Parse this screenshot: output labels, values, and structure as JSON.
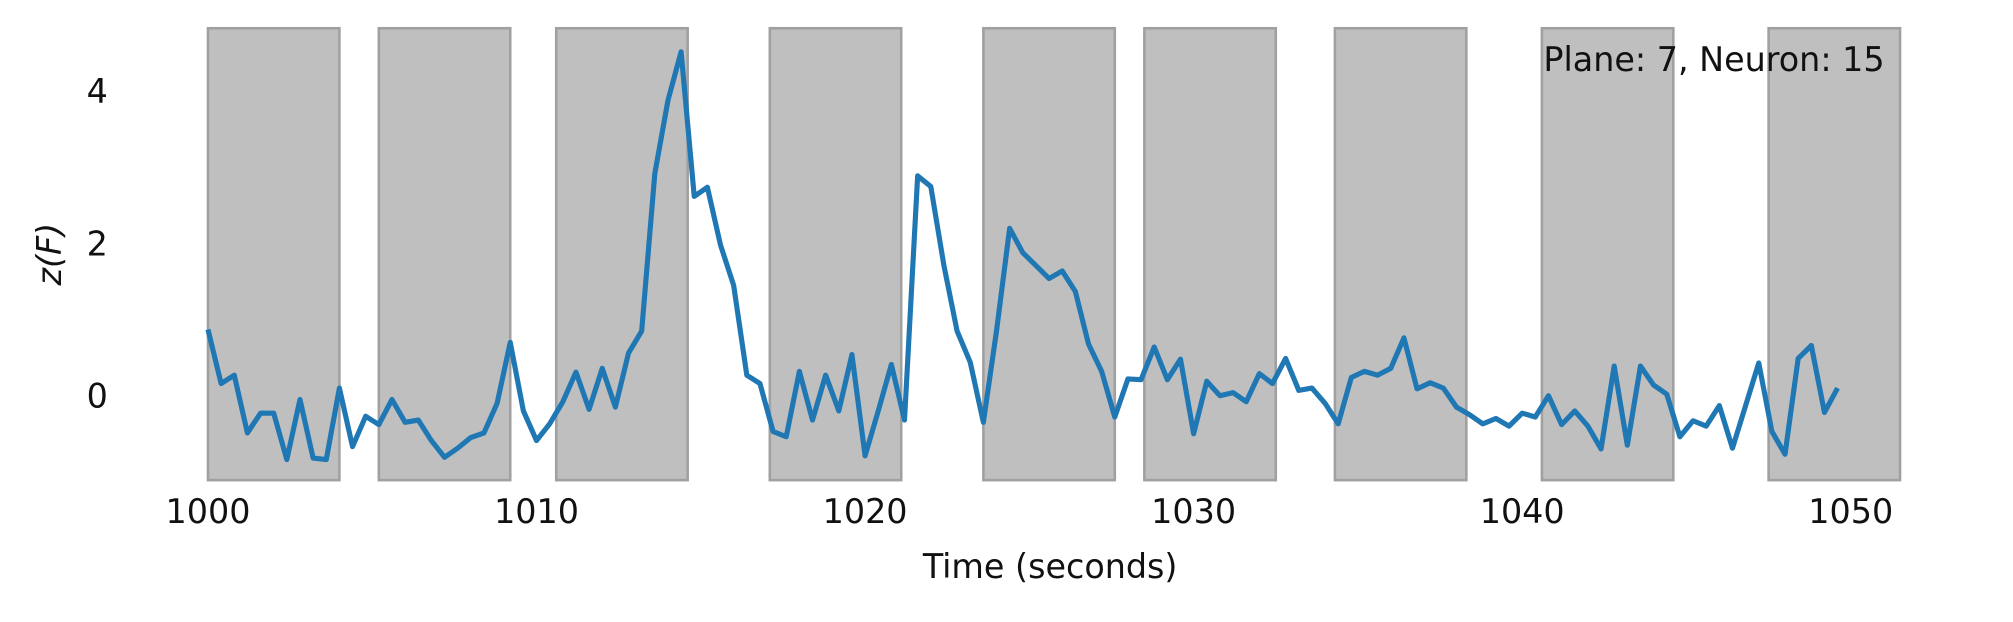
{
  "chart_data": {
    "type": "line",
    "ylabel": "z(F)",
    "xlabel": "Time (seconds)",
    "annotation": "Plane: 7, Neuron: 15",
    "x": [
      1000,
      1000.4,
      1000.8,
      1001.2,
      1001.6,
      1002,
      1002.4,
      1002.8,
      1003.2,
      1003.6,
      1004,
      1004.4,
      1004.8,
      1005.2,
      1005.6,
      1006,
      1006.4,
      1006.8,
      1007.2,
      1007.6,
      1008,
      1008.4,
      1008.8,
      1009.2,
      1009.6,
      1010,
      1010.4,
      1010.8,
      1011.2,
      1011.6,
      1012,
      1012.4,
      1012.8,
      1013.2,
      1013.6,
      1014,
      1014.4,
      1014.8,
      1015.2,
      1015.6,
      1016,
      1016.4,
      1016.8,
      1017.2,
      1017.6,
      1018,
      1018.4,
      1018.8,
      1019.2,
      1019.6,
      1020,
      1020.4,
      1020.8,
      1021.2,
      1021.6,
      1022,
      1022.4,
      1022.8,
      1023.2,
      1023.6,
      1024,
      1024.4,
      1024.8,
      1025.2,
      1025.6,
      1026,
      1026.4,
      1026.8,
      1027.2,
      1027.6,
      1028,
      1028.4,
      1028.8,
      1029.2,
      1029.6,
      1030,
      1030.4,
      1030.8,
      1031.2,
      1031.6,
      1032,
      1032.4,
      1032.8,
      1033.2,
      1033.6,
      1034,
      1034.4,
      1034.8,
      1035.2,
      1035.6,
      1036,
      1036.4,
      1036.8,
      1037.2,
      1037.6,
      1038,
      1038.4,
      1038.8,
      1039.2,
      1039.6,
      1040,
      1040.4,
      1040.8,
      1041.2,
      1041.6,
      1042,
      1042.4,
      1042.8,
      1043.2,
      1043.6,
      1044,
      1044.4,
      1044.8,
      1045.2,
      1045.6,
      1046,
      1046.4,
      1046.8,
      1047.2,
      1047.6,
      1048,
      1048.4,
      1048.8,
      1049.2,
      1049.6
    ],
    "values": [
      0.9,
      0.19,
      0.3,
      -0.46,
      -0.2,
      -0.2,
      -0.81,
      -0.02,
      -0.79,
      -0.81,
      0.13,
      -0.64,
      -0.24,
      -0.35,
      -0.02,
      -0.32,
      -0.29,
      -0.56,
      -0.78,
      -0.66,
      -0.52,
      -0.46,
      -0.07,
      0.73,
      -0.17,
      -0.56,
      -0.34,
      -0.05,
      0.34,
      -0.15,
      0.39,
      -0.12,
      0.59,
      0.88,
      2.95,
      3.91,
      4.55,
      2.65,
      2.77,
      2.01,
      1.48,
      0.3,
      0.19,
      -0.44,
      -0.51,
      0.35,
      -0.29,
      0.3,
      -0.17,
      0.57,
      -0.76,
      -0.17,
      0.44,
      -0.29,
      2.92,
      2.78,
      1.74,
      0.88,
      0.47,
      -0.32,
      0.88,
      2.23,
      1.91,
      1.74,
      1.57,
      1.67,
      1.4,
      0.71,
      0.35,
      -0.25,
      0.25,
      0.24,
      0.67,
      0.24,
      0.51,
      -0.47,
      0.22,
      0.03,
      0.07,
      -0.05,
      0.32,
      0.19,
      0.52,
      0.1,
      0.13,
      -0.07,
      -0.34,
      0.27,
      0.35,
      0.3,
      0.39,
      0.79,
      0.12,
      0.2,
      0.13,
      -0.12,
      -0.22,
      -0.34,
      -0.27,
      -0.37,
      -0.2,
      -0.25,
      0.03,
      -0.35,
      -0.17,
      -0.37,
      -0.67,
      0.42,
      -0.62,
      0.42,
      0.17,
      0.05,
      -0.51,
      -0.3,
      -0.37,
      -0.1,
      -0.66,
      -0.1,
      0.46,
      -0.44,
      -0.74,
      0.52,
      0.69,
      -0.19,
      0.13
    ],
    "color": "#1f77b4",
    "shaded_regions": [
      [
        1000,
        1004
      ],
      [
        1005.2,
        1009.2
      ],
      [
        1010.6,
        1014.6
      ],
      [
        1017.1,
        1021.1
      ],
      [
        1023.6,
        1027.6
      ],
      [
        1028.5,
        1032.5
      ],
      [
        1034.3,
        1038.3
      ],
      [
        1040.6,
        1044.6
      ],
      [
        1047.5,
        1051.5
      ]
    ],
    "shade_color": "#bfbfbf",
    "xlim": [
      1000,
      1051.5
    ],
    "ylim": [
      -1.08,
      4.86
    ],
    "xticks": [
      1000,
      1010,
      1020,
      1030,
      1040,
      1050
    ],
    "yticks": [
      0,
      2,
      4
    ],
    "grid": false
  }
}
